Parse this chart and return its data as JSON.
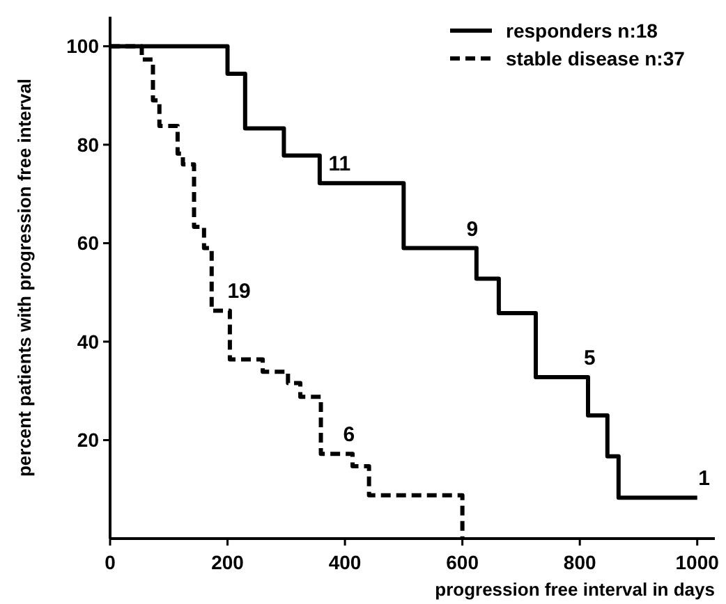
{
  "chart_data": {
    "type": "step",
    "xlabel": "progression free interval in days",
    "ylabel": "percent patients with progression free interval",
    "xlim": [
      0,
      1030
    ],
    "ylim": [
      0,
      106
    ],
    "xticks": [
      0,
      200,
      400,
      600,
      800,
      1000
    ],
    "yticks": [
      20,
      40,
      60,
      80,
      100
    ],
    "grid": false,
    "legend": "top right",
    "marker": "none",
    "series": [
      {
        "name": "responders n:18",
        "color": "#000000",
        "line_style": "solid",
        "x": [
          0,
          200,
          230,
          296,
          357,
          500,
          624,
          662,
          725,
          814,
          847,
          866,
          1000
        ],
        "values": [
          100,
          94.4,
          83.3,
          77.8,
          72.2,
          59,
          52.8,
          45.8,
          32.8,
          25,
          16.7,
          8.3,
          8.3
        ]
      },
      {
        "name": "stable disease n:37",
        "color": "#000000",
        "line_style": "dashed",
        "x": [
          0,
          54,
          73,
          84,
          115,
          124,
          143,
          160,
          173,
          204,
          260,
          303,
          324,
          359,
          413,
          441,
          600,
          600
        ],
        "values": [
          100,
          97.3,
          89,
          83.8,
          78.2,
          76,
          63.3,
          59,
          46.3,
          36.4,
          33.9,
          31.6,
          28.8,
          17.2,
          14.7,
          8.8,
          8.8,
          0
        ]
      }
    ],
    "annotations": [
      {
        "text": "11",
        "x": 360,
        "y": 72.2
      },
      {
        "text": "9",
        "x": 595,
        "y": 59
      },
      {
        "text": "5",
        "x": 795,
        "y": 32.8
      },
      {
        "text": "1",
        "x": 990,
        "y": 8.3
      },
      {
        "text": "19",
        "x": 188,
        "y": 46.3
      },
      {
        "text": "6",
        "x": 385,
        "y": 17.2
      }
    ]
  }
}
